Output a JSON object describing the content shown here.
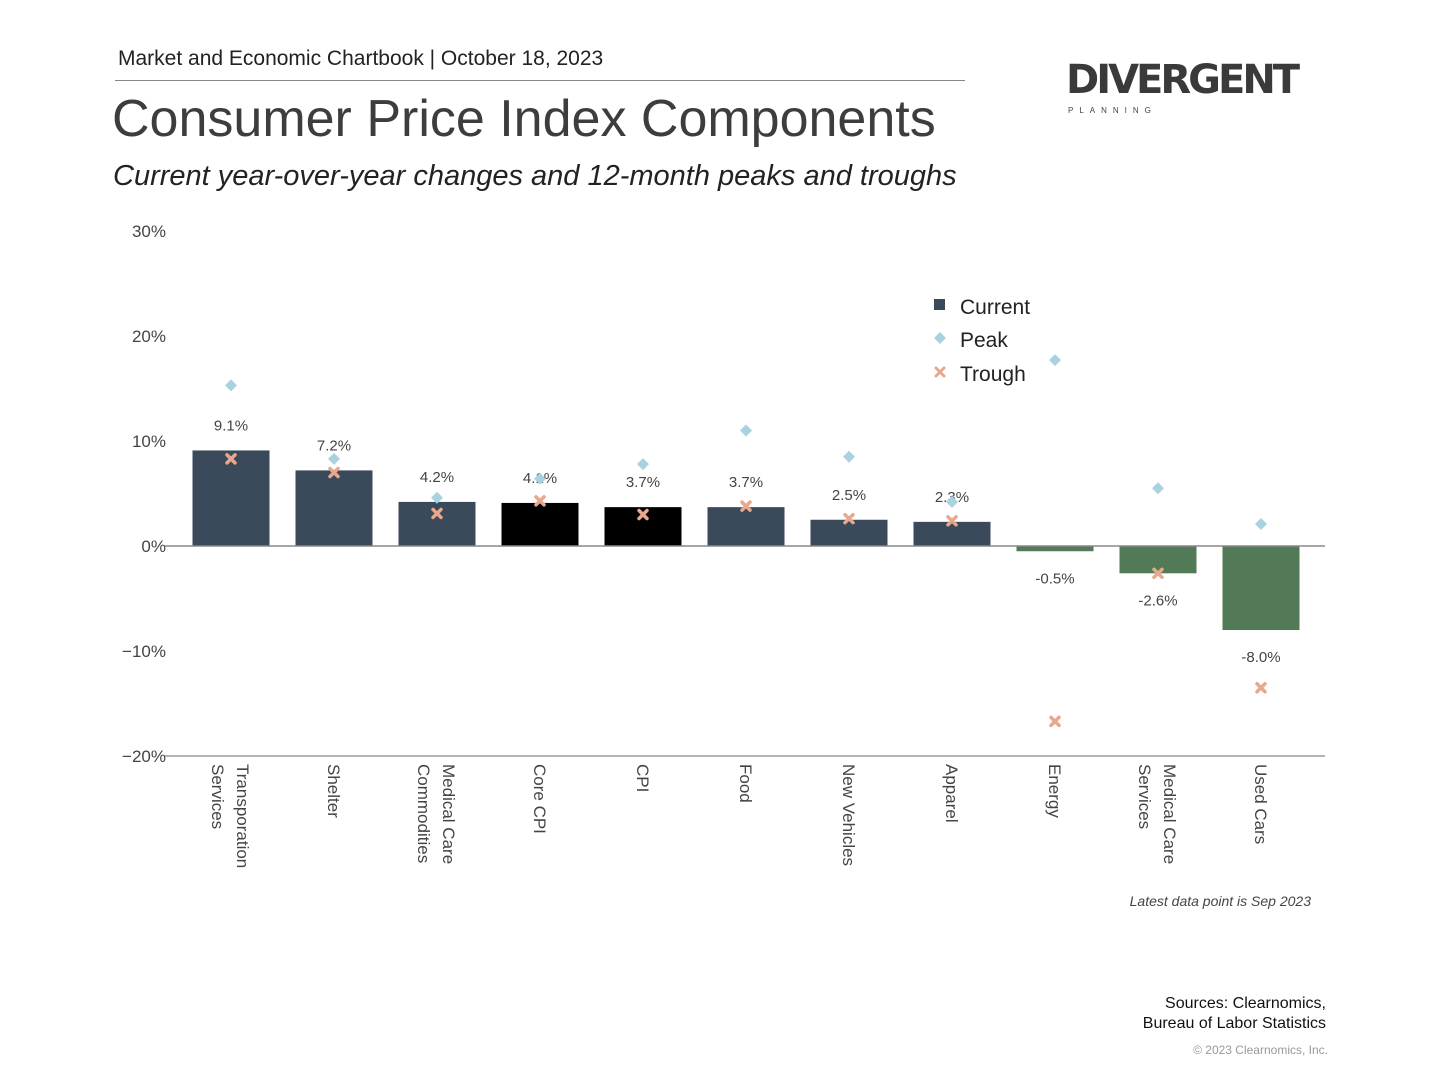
{
  "header": "Market and Economic Chartbook | October 18, 2023",
  "logo": {
    "main": "DIVERGENT",
    "sub": "PLANNING"
  },
  "footer": {
    "note": "Latest data point is Sep 2023",
    "sources_line1": "Sources: Clearnomics,",
    "sources_line2": "Bureau of Labor Statistics",
    "copyright": "© 2023 Clearnomics, Inc."
  },
  "chart_data": {
    "type": "bar",
    "title": "Consumer Price Index Components",
    "subtitle": "Current year-over-year changes and 12-month peaks and troughs",
    "categories": [
      "Transporation Services",
      "Shelter",
      "Medical Care Commodities",
      "Core CPI",
      "CPI",
      "Food",
      "New Vehicles",
      "Apparel",
      "Energy",
      "Medical Care Services",
      "Used Cars"
    ],
    "category_lines": [
      [
        "Transporation",
        "Services"
      ],
      [
        "Shelter"
      ],
      [
        "Medical Care",
        "Commodities"
      ],
      [
        "Core CPI"
      ],
      [
        "CPI"
      ],
      [
        "Food"
      ],
      [
        "New Vehicles"
      ],
      [
        "Apparel"
      ],
      [
        "Energy"
      ],
      [
        "Medical Care",
        "Services"
      ],
      [
        "Used Cars"
      ]
    ],
    "series": [
      {
        "name": "Current",
        "values": [
          9.1,
          7.2,
          4.2,
          4.1,
          3.7,
          3.7,
          2.5,
          2.3,
          -0.5,
          -2.6,
          -8.0
        ],
        "labels": [
          "9.1%",
          "7.2%",
          "4.2%",
          "4.1%",
          "3.7%",
          "3.7%",
          "2.5%",
          "2.3%",
          "-0.5%",
          "-2.6%",
          "-8.0%"
        ]
      },
      {
        "name": "Peak",
        "values": [
          15.3,
          8.3,
          4.6,
          6.4,
          7.8,
          11.0,
          8.5,
          4.2,
          17.7,
          5.5,
          2.1
        ]
      },
      {
        "name": "Trough",
        "values": [
          8.3,
          7.0,
          3.1,
          4.3,
          3.0,
          3.8,
          2.6,
          2.4,
          -16.7,
          -2.6,
          -13.5
        ]
      }
    ],
    "ylim": [
      -20,
      30
    ],
    "yticks": [
      30,
      20,
      10,
      0,
      -10,
      -20
    ],
    "ytick_labels": [
      "30%",
      "20%",
      "10%",
      "0%",
      "−10%",
      "−20%"
    ],
    "legend_position": "top-right",
    "grid": false,
    "colors": {
      "current": "#3b4a5b",
      "highlight": "#000000",
      "negative": "#537a56",
      "peak": "#a9d2df",
      "trough": "#e9a78c",
      "axis": "#888888"
    },
    "highlighted": [
      "Core CPI",
      "CPI"
    ]
  }
}
